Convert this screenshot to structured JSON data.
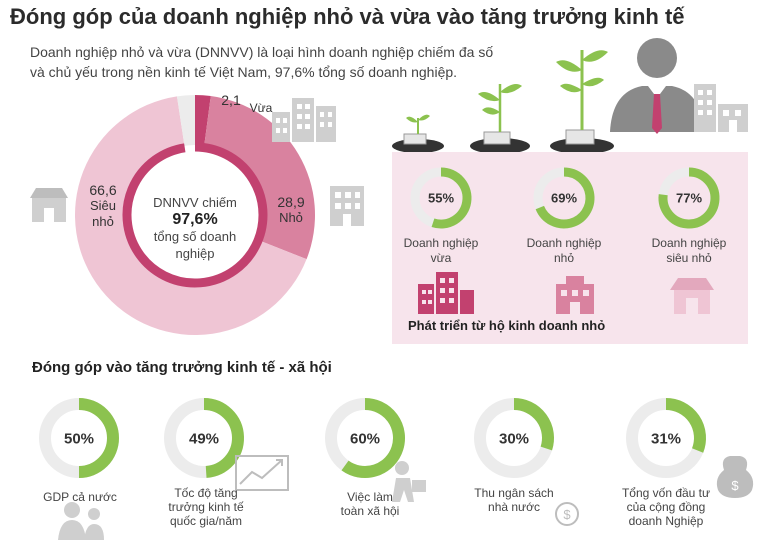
{
  "title": "Đóng góp của doanh nghiệp nhỏ và vừa vào tăng trưởng kinh tế",
  "intro_line1": "Doanh nghiệp nhỏ và vừa (DNNVV) là loại hình doanh nghiệp chiếm đa số",
  "intro_line2": "và chủ yếu trong nền kinh tế Việt Nam, 97,6% tổng số doanh nghiệp.",
  "center": {
    "line1": "DNNVV chiếm",
    "value": "97,6%",
    "line3": "tổng số doanh",
    "line4": "nghiệp"
  },
  "donut_labels": {
    "vua_value": "2,1",
    "vua_name": "Vừa",
    "sieu_nho_value": "66,6",
    "sieu_nho_name_1": "Siêu",
    "sieu_nho_name_2": "nhỏ",
    "nho_value": "28,9",
    "nho_name": "Nhỏ"
  },
  "panel": {
    "caption": "Phát triển từ hộ kinh doanh nhỏ",
    "items": [
      {
        "label1": "Doanh nghiệp",
        "label2": "vừa"
      },
      {
        "label1": "Doanh nghiệp",
        "label2": "nhỏ"
      },
      {
        "label1": "Doanh nghiệp",
        "label2": "siêu nhỏ"
      }
    ]
  },
  "section_title": "Đóng góp vào tăng trưởng kinh tế - xã hội",
  "contributions": [
    {
      "label1": "GDP cả nước",
      "label2": "",
      "label3": ""
    },
    {
      "label1": "Tốc độ tăng",
      "label2": "trưởng kinh tế",
      "label3": "quốc gia/năm"
    },
    {
      "label1": "Việc làm",
      "label2": "toàn xã hội",
      "label3": ""
    },
    {
      "label1": "Thu ngân sách",
      "label2": "nhà nước",
      "label3": ""
    },
    {
      "label1": "Tổng vốn đầu tư",
      "label2": "của cộng đồng",
      "label3": "doanh Nghiệp"
    }
  ],
  "colors": {
    "green": "#8cc24f",
    "ring_grey": "#ececec",
    "dark_pink": "#c2416f",
    "mid_pink": "#d9829f",
    "light_pink": "#efc5d4",
    "panel_bg": "#f7e4ec",
    "icon_grey": "#c4c4c4"
  },
  "chart_data": [
    {
      "type": "pie",
      "categories": [
        "Vừa",
        "Nhỏ",
        "Siêu nhỏ"
      ],
      "values": [
        2.1,
        28.9,
        66.6
      ],
      "title": "",
      "annotation": "DNNVV chiếm 97,6% tổng số doanh nghiệp"
    },
    {
      "type": "pie",
      "categories": [
        "Doanh nghiệp vừa",
        "Doanh nghiệp nhỏ",
        "Doanh nghiệp siêu nhỏ"
      ],
      "values": [
        55,
        69,
        77
      ],
      "value_labels": [
        "55%",
        "69%",
        "77%"
      ],
      "title": ""
    },
    {
      "type": "pie",
      "categories": [
        "GDP cả nước",
        "Tốc độ tăng trưởng kinh tế quốc gia/năm",
        "Việc làm toàn xã hội",
        "Thu ngân sách nhà nước",
        "Tổng vốn đầu tư của cộng đồng doanh Nghiệp"
      ],
      "values": [
        50,
        49,
        60,
        30,
        31
      ],
      "value_labels": [
        "50%",
        "49%",
        "60%",
        "30%",
        "31%"
      ],
      "title": "Đóng góp vào tăng trưởng kinh tế - xã hội"
    }
  ]
}
